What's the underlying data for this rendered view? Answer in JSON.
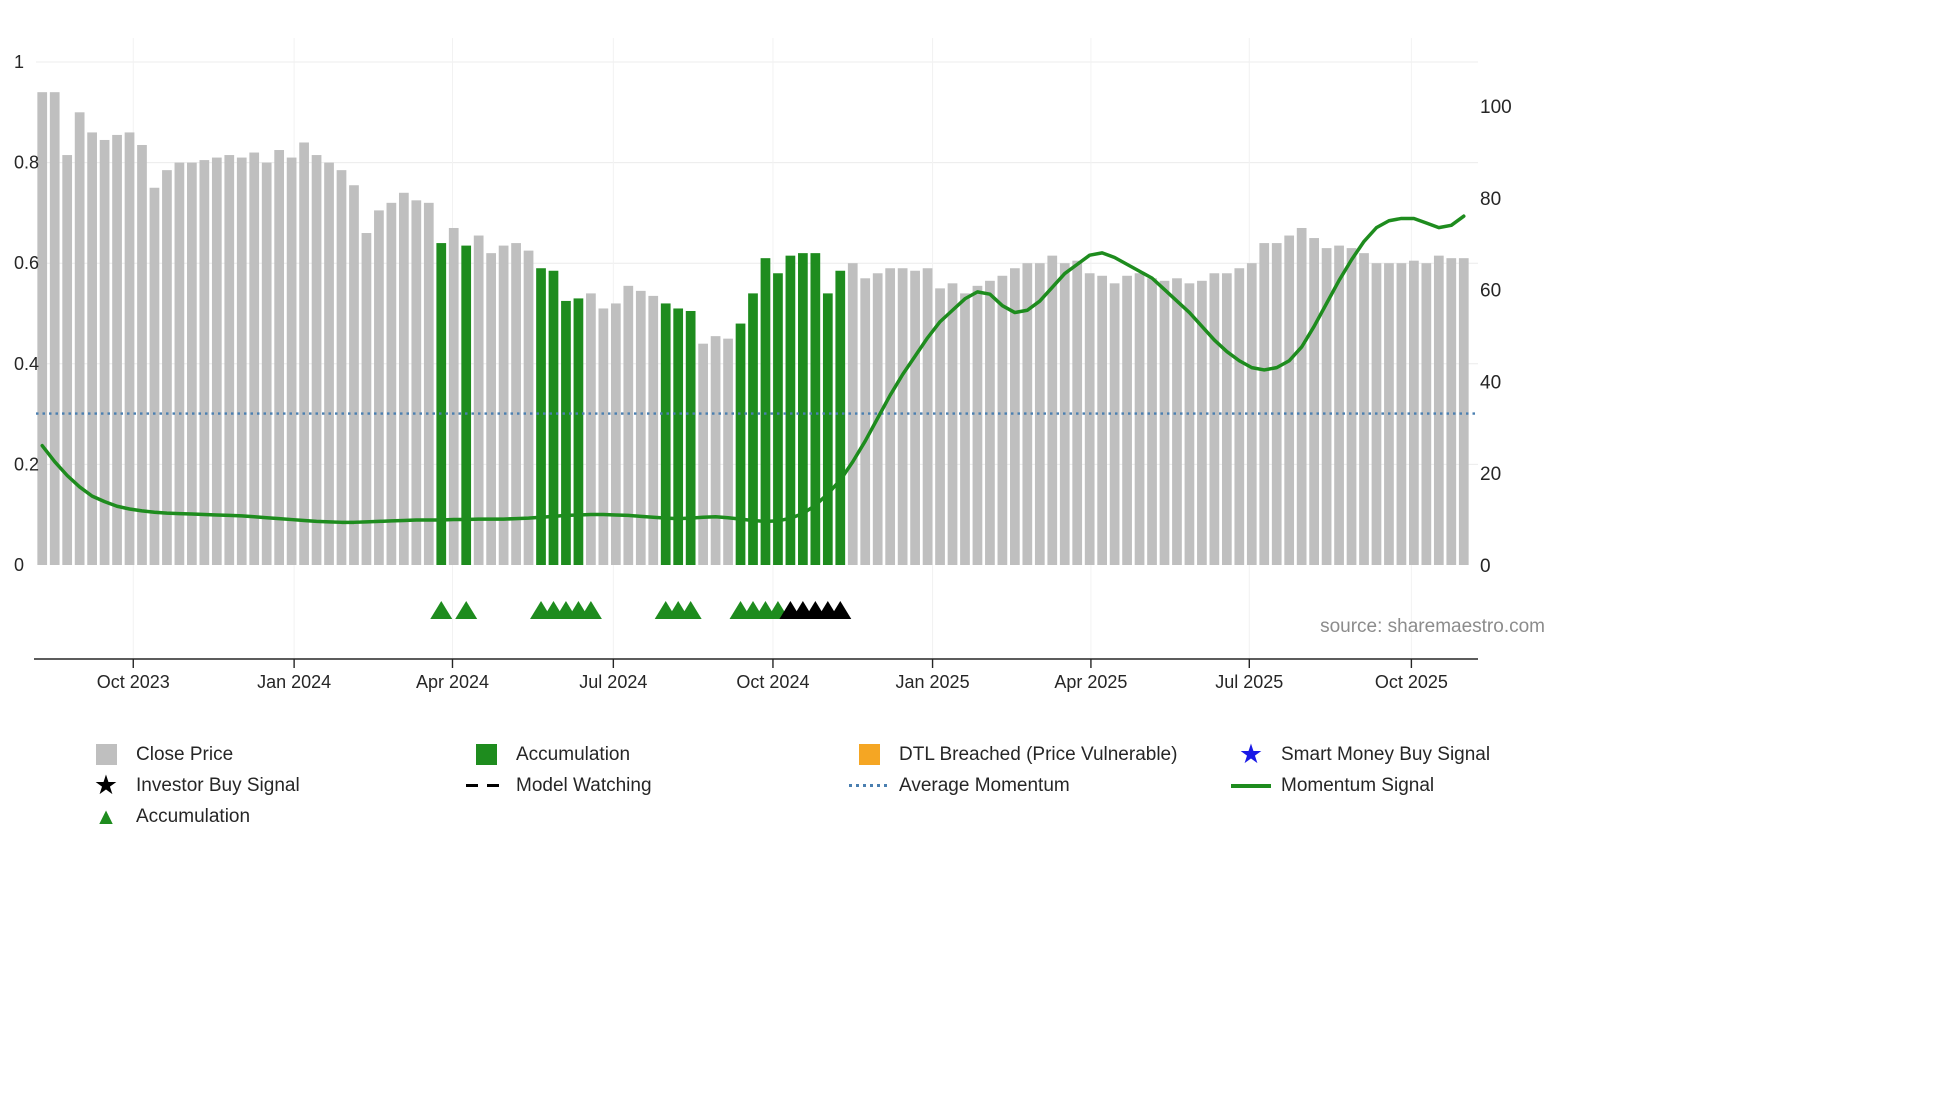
{
  "source_text": "source: sharemaestro.com",
  "colors": {
    "close_price": "#bfbfbf",
    "accumulation": "#1e8c1e",
    "momentum": "#1e8c1e",
    "average_momentum": "#4a7fb0",
    "dtl_breached": "#f5a623",
    "smart_money_star": "#1a1ae6",
    "investor_star": "#000000",
    "axis_text": "#262626",
    "grid": "#ececec"
  },
  "chart_data": {
    "type": "bar",
    "title": "",
    "xlabel": "",
    "ylabel": "",
    "x_axis": {
      "tick_labels": [
        "Oct 2023",
        "Jan 2024",
        "Apr 2024",
        "Jul 2024",
        "Oct 2024",
        "Jan 2025",
        "Apr 2025",
        "Jul 2025",
        "Oct 2025"
      ],
      "tick_positions": [
        7.3,
        20.2,
        32.9,
        45.8,
        58.6,
        71.4,
        84.1,
        96.8,
        109.8
      ]
    },
    "left_axis": {
      "ticks": [
        0,
        0.2,
        0.4,
        0.6,
        0.8,
        1
      ],
      "range": [
        0,
        1.04
      ],
      "grid": true
    },
    "right_axis": {
      "ticks": [
        0,
        20,
        40,
        60,
        80,
        100
      ],
      "range": [
        0,
        114
      ]
    },
    "series": [
      {
        "name": "Close Price",
        "type": "bar",
        "axis": "left",
        "color": "#bfbfbf",
        "values": [
          0.94,
          0.94,
          0.815,
          0.9,
          0.86,
          0.845,
          0.855,
          0.86,
          0.835,
          0.75,
          0.785,
          0.8,
          0.8,
          0.805,
          0.81,
          0.815,
          0.81,
          0.82,
          0.8,
          0.825,
          0.81,
          0.84,
          0.815,
          0.8,
          0.785,
          0.755,
          0.66,
          0.705,
          0.72,
          0.74,
          0.725,
          0.72,
          0.64,
          0.67,
          0.635,
          0.655,
          0.62,
          0.635,
          0.64,
          0.625,
          0.59,
          0.585,
          0.525,
          0.53,
          0.54,
          0.51,
          0.52,
          0.555,
          0.545,
          0.535,
          0.52,
          0.51,
          0.505,
          0.44,
          0.455,
          0.45,
          0.48,
          0.54,
          0.61,
          0.58,
          0.615,
          0.62,
          0.62,
          0.54,
          0.585,
          0.6,
          0.57,
          0.58,
          0.59,
          0.59,
          0.585,
          0.59,
          0.55,
          0.56,
          0.54,
          0.555,
          0.565,
          0.575,
          0.59,
          0.6,
          0.6,
          0.615,
          0.6,
          0.605,
          0.58,
          0.575,
          0.56,
          0.575,
          0.58,
          0.57,
          0.565,
          0.57,
          0.56,
          0.565,
          0.58,
          0.58,
          0.59,
          0.6,
          0.64,
          0.64,
          0.655,
          0.67,
          0.65,
          0.63,
          0.635,
          0.63,
          0.62,
          0.6,
          0.6,
          0.6,
          0.605,
          0.6,
          0.615,
          0.61,
          0.61
        ]
      },
      {
        "name": "Momentum Signal",
        "type": "line",
        "axis": "right",
        "color": "#1e8c1e",
        "values": [
          26,
          22.5,
          19.5,
          17,
          15,
          13.8,
          12.8,
          12.2,
          11.8,
          11.5,
          11.3,
          11.2,
          11.1,
          11,
          10.9,
          10.8,
          10.7,
          10.5,
          10.3,
          10.1,
          9.9,
          9.7,
          9.5,
          9.4,
          9.3,
          9.3,
          9.4,
          9.5,
          9.6,
          9.7,
          9.8,
          9.8,
          9.8,
          9.9,
          9.9,
          10,
          10,
          10,
          10.1,
          10.2,
          10.4,
          10.6,
          10.8,
          10.9,
          11,
          11,
          10.9,
          10.8,
          10.6,
          10.4,
          10.2,
          10.1,
          10.2,
          10.4,
          10.5,
          10.3,
          10,
          9.7,
          9.5,
          9.6,
          10.2,
          11.2,
          13,
          15.5,
          18.5,
          22.5,
          27,
          32,
          37,
          41.5,
          45.5,
          49.5,
          53,
          55.5,
          58,
          59.5,
          59,
          56.5,
          55,
          55.5,
          57.5,
          60.5,
          63.5,
          65.5,
          67.5,
          68,
          67,
          65.5,
          64,
          62.5,
          60,
          57.5,
          55,
          52,
          49,
          46.5,
          44.5,
          43,
          42.5,
          43,
          44.5,
          47.5,
          52,
          57,
          62,
          66.5,
          70.5,
          73.5,
          75,
          75.5,
          75.5,
          74.5,
          73.5,
          74,
          76
        ]
      }
    ],
    "accumulation_bar_indices": [
      32,
      34,
      40,
      41,
      42,
      43,
      50,
      51,
      52,
      56,
      57,
      58,
      59,
      60,
      61,
      62,
      63,
      64
    ],
    "average_momentum": {
      "name": "Average Momentum",
      "axis": "right",
      "value": 33,
      "color": "#4a7fb0",
      "style": "dotted"
    },
    "markers": {
      "accumulation_triangles": [
        32,
        34,
        40,
        41,
        42,
        43,
        44,
        50,
        51,
        52,
        56,
        57,
        58,
        59
      ],
      "investor_buy_triangles": [
        60,
        61,
        62,
        63,
        64
      ]
    }
  },
  "legend": {
    "columns": [
      {
        "items": [
          {
            "shape": "square",
            "color": "#bfbfbf",
            "label": "Close Price"
          },
          {
            "shape": "star",
            "color": "#000000",
            "label": "Investor Buy Signal"
          },
          {
            "shape": "triangle",
            "color": "#1e8c1e",
            "label": "Accumulation"
          }
        ]
      },
      {
        "items": [
          {
            "shape": "square",
            "color": "#1e8c1e",
            "label": "Accumulation"
          },
          {
            "shape": "dashed-line",
            "color": "#000000",
            "label": "Model Watching"
          }
        ]
      },
      {
        "items": [
          {
            "shape": "square",
            "color": "#f5a623",
            "label": "DTL Breached (Price Vulnerable)"
          },
          {
            "shape": "dotted-line",
            "color": "#4a7fb0",
            "label": "Average Momentum"
          }
        ]
      },
      {
        "items": [
          {
            "shape": "star",
            "color": "#1a1ae6",
            "label": "Smart Money Buy Signal"
          },
          {
            "shape": "solid-line",
            "color": "#1e8c1e",
            "label": "Momentum Signal"
          }
        ]
      }
    ]
  }
}
